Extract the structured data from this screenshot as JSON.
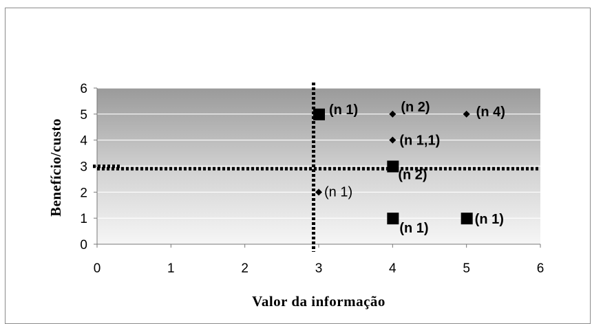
{
  "chart_data": {
    "type": "scatter",
    "xlabel": "Valor da informação",
    "ylabel": "Benefício/custo",
    "xlim": [
      0,
      6
    ],
    "ylim": [
      0,
      6
    ],
    "x_ticks": [
      "0",
      "1",
      "2",
      "3",
      "4",
      "5",
      "6"
    ],
    "y_ticks": [
      "0",
      "1",
      "2",
      "3",
      "4",
      "5",
      "6"
    ],
    "grid": true,
    "background": "shaded gradient, darker at top",
    "reference_lines": [
      {
        "orientation": "vertical",
        "x": 2.93,
        "style": "dashed-black"
      },
      {
        "orientation": "horizontal",
        "y": 2.9,
        "style": "dashed-black"
      }
    ],
    "series": [
      {
        "marker": "square",
        "points": [
          {
            "x": 3,
            "y": 5,
            "label": "(n 1)"
          },
          {
            "x": 4,
            "y": 3,
            "label": "(n 2)"
          },
          {
            "x": 4,
            "y": 1,
            "label": "(n 1)"
          },
          {
            "x": 5,
            "y": 1,
            "label": "(n 1)"
          }
        ]
      },
      {
        "marker": "diamond",
        "points": [
          {
            "x": 4,
            "y": 5,
            "label": "(n 2)"
          },
          {
            "x": 5,
            "y": 5,
            "label": "(n 4)"
          },
          {
            "x": 4,
            "y": 4,
            "label": "(n 1,1)"
          },
          {
            "x": 3,
            "y": 2,
            "label": "(n 1)",
            "label_style": "normal"
          }
        ]
      }
    ],
    "colors": {
      "marker": "#000000",
      "grid": "#ffffff",
      "bg_top": "#9a9a9a",
      "bg_bottom": "#f4f4f4"
    }
  }
}
